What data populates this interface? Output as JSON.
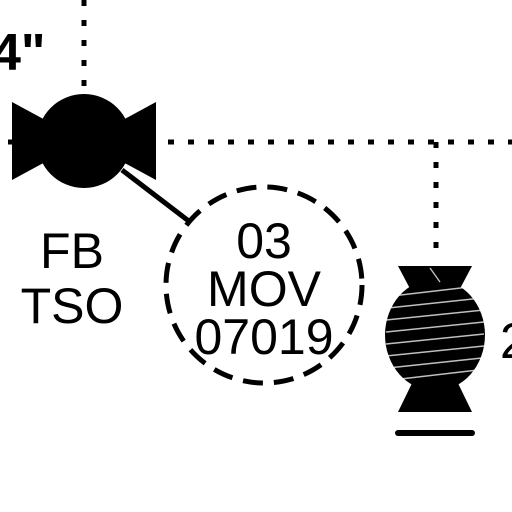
{
  "diagram": {
    "size_fragment": "4\"",
    "left_valve": {
      "label_line1": "FB",
      "label_line2": "TSO"
    },
    "tag_bubble": {
      "line1": "03",
      "line2": "MOV",
      "line3": "07019"
    },
    "right_edge_fragment": "2"
  },
  "colors": {
    "line": "#000000",
    "background": "#ffffff",
    "hatch": "#ffffff"
  }
}
